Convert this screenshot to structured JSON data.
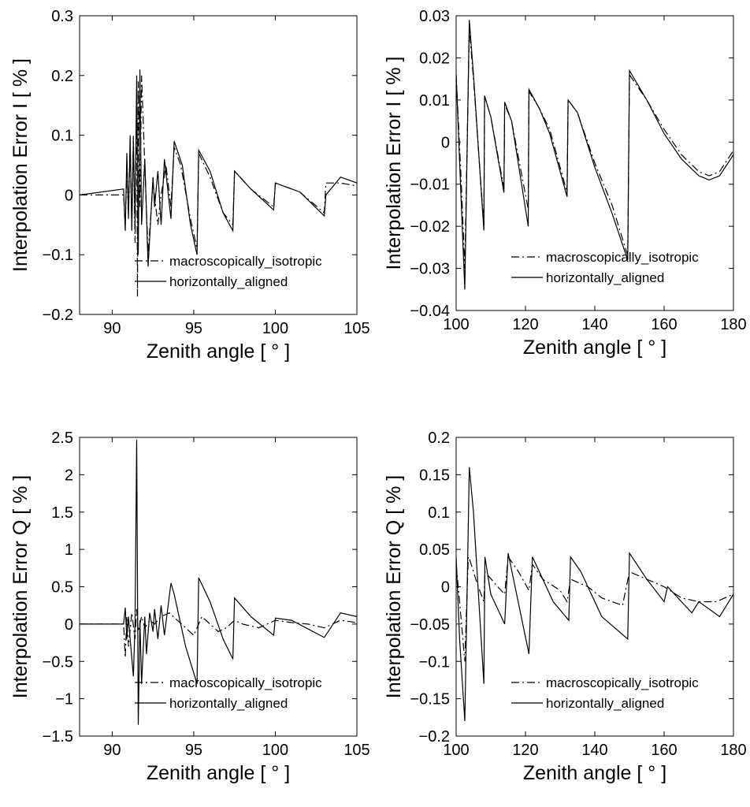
{
  "colors": {
    "line": "#000000",
    "background": "#ffffff"
  },
  "chart_data": [
    {
      "type": "line",
      "xlabel": "Zenith angle [ ° ]",
      "ylabel": "Interpolation Error I [ % ]",
      "xlim": [
        88,
        105
      ],
      "ylim": [
        -0.2,
        0.3
      ],
      "xticks": [
        90,
        95,
        100,
        105
      ],
      "yticks": [
        -0.2,
        -0.1,
        0,
        0.1,
        0.2,
        0.3
      ],
      "yticklabels": [
        "−0.2",
        "−0.1",
        "0",
        "0.1",
        "0.2",
        "0.3"
      ],
      "legend": {
        "location": "bottom-right"
      },
      "series": [
        {
          "name": "macroscopically_isotropic",
          "style": "dashdot",
          "x": [
            88,
            90.7,
            90.8,
            90.9,
            91.0,
            91.1,
            91.2,
            91.3,
            91.4,
            91.5,
            91.55,
            91.6,
            91.7,
            91.8,
            92.0,
            92.2,
            92.5,
            92.8,
            93.0,
            93.3,
            93.6,
            93.8,
            94.2,
            94.8,
            95.2,
            95.3,
            96.0,
            96.8,
            97.4,
            97.5,
            98.5,
            99.9,
            100.0,
            101.5,
            103.0,
            103.1,
            104.0,
            105.0
          ],
          "y": [
            0,
            0,
            -0.05,
            0.04,
            -0.03,
            0.08,
            -0.05,
            0.1,
            -0.08,
            0.18,
            -0.17,
            0.19,
            -0.02,
            0.2,
            0.05,
            -0.1,
            0.02,
            -0.05,
            0.0,
            0.05,
            -0.02,
            0.08,
            0.05,
            -0.04,
            -0.09,
            0.07,
            0.03,
            -0.03,
            -0.05,
            0.04,
            0.01,
            -0.02,
            0.02,
            0.005,
            -0.03,
            0.02,
            0.02,
            0.015
          ]
        },
        {
          "name": "horizontally_aligned",
          "style": "solid",
          "x": [
            88,
            90.7,
            90.8,
            90.9,
            91.0,
            91.1,
            91.2,
            91.3,
            91.4,
            91.5,
            91.6,
            91.7,
            91.8,
            92.0,
            92.2,
            92.5,
            92.6,
            92.8,
            93.0,
            93.2,
            93.6,
            93.8,
            94.3,
            94.8,
            95.2,
            95.3,
            96.0,
            96.8,
            97.4,
            97.5,
            98.5,
            99.9,
            100.0,
            101.5,
            103.0,
            103.1,
            104.0,
            105.0
          ],
          "y": [
            0,
            0.01,
            -0.06,
            0.07,
            -0.04,
            0.1,
            -0.06,
            0.09,
            -0.05,
            0.2,
            -0.1,
            0.21,
            -0.05,
            0.06,
            -0.12,
            0.03,
            -0.02,
            0.04,
            -0.05,
            0.06,
            -0.04,
            0.09,
            0.05,
            -0.05,
            -0.1,
            0.075,
            0.04,
            -0.03,
            -0.06,
            0.04,
            0.01,
            -0.025,
            0.02,
            0.005,
            -0.035,
            0.0,
            0.03,
            0.02
          ]
        }
      ]
    },
    {
      "type": "line",
      "xlabel": "Zenith angle [ ° ]",
      "ylabel": "Interpolation Error I [ % ]",
      "xlim": [
        100,
        180
      ],
      "ylim": [
        -0.04,
        0.03
      ],
      "xticks": [
        100,
        120,
        140,
        160,
        180
      ],
      "yticks": [
        -0.04,
        -0.03,
        -0.02,
        -0.01,
        0,
        0.01,
        0.02,
        0.03
      ],
      "yticklabels": [
        "−0.04",
        "−0.03",
        "−0.02",
        "−0.01",
        "0",
        "0.01",
        "0.02",
        "0.03"
      ],
      "legend": {
        "location": "bottom-right"
      },
      "series": [
        {
          "name": "macroscopically_isotropic",
          "style": "dashdot",
          "x": [
            100,
            101.5,
            102.5,
            103.8,
            105,
            108,
            108.2,
            110,
            113.8,
            114,
            116,
            120.8,
            121,
            124,
            127,
            132,
            132.3,
            135,
            140,
            145,
            149.5,
            150,
            155,
            160,
            165,
            170,
            173,
            176,
            180
          ],
          "y": [
            0.016,
            -0.01,
            -0.03,
            0.027,
            0.015,
            -0.02,
            0.011,
            0.006,
            -0.011,
            0.009,
            0.005,
            -0.016,
            0.012,
            0.008,
            0.003,
            -0.012,
            0.01,
            0.007,
            -0.005,
            -0.015,
            -0.027,
            0.016,
            0.01,
            0.003,
            -0.003,
            -0.007,
            -0.008,
            -0.007,
            -0.002
          ]
        },
        {
          "name": "horizontally_aligned",
          "style": "solid",
          "x": [
            100,
            101.5,
            102.5,
            103.8,
            105,
            108,
            108.2,
            110,
            113.8,
            114,
            116,
            120.8,
            121,
            124,
            127,
            132,
            132.3,
            135,
            140,
            145,
            149.5,
            150,
            155,
            160,
            165,
            170,
            173,
            176,
            180
          ],
          "y": [
            0.016,
            -0.015,
            -0.035,
            0.029,
            0.016,
            -0.021,
            0.011,
            0.006,
            -0.012,
            0.0095,
            0.005,
            -0.02,
            0.0125,
            0.008,
            0.002,
            -0.013,
            0.01,
            0.007,
            -0.006,
            -0.017,
            -0.028,
            0.017,
            0.01,
            0.002,
            -0.004,
            -0.008,
            -0.009,
            -0.008,
            -0.003
          ]
        }
      ]
    },
    {
      "type": "line",
      "xlabel": "Zenith angle [ ° ]",
      "ylabel": "Interpolation Error  Q [ % ]",
      "xlim": [
        88,
        105
      ],
      "ylim": [
        -1.5,
        2.5
      ],
      "xticks": [
        90,
        95,
        100,
        105
      ],
      "yticks": [
        -1.5,
        -1,
        -0.5,
        0,
        0.5,
        1,
        1.5,
        2,
        2.5
      ],
      "yticklabels": [
        "−1.5",
        "−1",
        "−0.5",
        "0",
        "0.5",
        "1",
        "1.5",
        "2",
        "2.5"
      ],
      "legend": {
        "location": "bottom-right"
      },
      "series": [
        {
          "name": "macroscopically_isotropic",
          "style": "dashdot",
          "x": [
            88,
            90.7,
            90.8,
            90.9,
            91.0,
            91.2,
            91.4,
            91.5,
            91.6,
            91.8,
            92.0,
            92.3,
            92.6,
            93.0,
            93.5,
            94.0,
            94.5,
            95.0,
            95.5,
            96.0,
            96.5,
            97.0,
            97.5,
            98.0,
            99.0,
            100.0,
            101.0,
            102.0,
            103.0,
            104.0,
            105.0
          ],
          "y": [
            0,
            0,
            -0.45,
            0.1,
            -0.3,
            0.15,
            -0.2,
            0.2,
            -0.1,
            0.1,
            -0.05,
            0.05,
            0.0,
            0.1,
            0.15,
            0.05,
            -0.05,
            -0.15,
            0.1,
            0.0,
            -0.1,
            -0.05,
            0.05,
            0.0,
            -0.05,
            0.05,
            0.02,
            0.0,
            -0.05,
            0.05,
            0.02
          ]
        },
        {
          "name": "horizontally_aligned",
          "style": "solid",
          "x": [
            88,
            90.7,
            90.8,
            90.9,
            91.0,
            91.1,
            91.3,
            91.4,
            91.5,
            91.6,
            91.7,
            91.8,
            92.0,
            92.1,
            92.3,
            92.5,
            92.6,
            92.8,
            93.0,
            93.2,
            93.6,
            93.8,
            94.5,
            95.2,
            95.3,
            96.0,
            96.8,
            97.4,
            97.5,
            98.5,
            99.9,
            100.0,
            101.0,
            103.0,
            104.0,
            105.0
          ],
          "y": [
            0,
            0.0,
            0.22,
            -0.2,
            0.1,
            -0.2,
            -0.7,
            0.0,
            2.47,
            -1.35,
            0.05,
            -0.8,
            0.1,
            -0.4,
            0.15,
            -0.1,
            0.2,
            -0.2,
            0.25,
            -0.15,
            0.55,
            0.4,
            -0.3,
            -0.8,
            0.62,
            0.3,
            -0.2,
            -0.47,
            0.35,
            0.1,
            -0.15,
            0.08,
            0.05,
            -0.18,
            0.15,
            0.1
          ]
        }
      ]
    },
    {
      "type": "line",
      "xlabel": "Zenith angle [ ° ]",
      "ylabel": "Interpolation Error Q [ % ]",
      "xlim": [
        100,
        180
      ],
      "ylim": [
        -0.2,
        0.2
      ],
      "xticks": [
        100,
        120,
        140,
        160,
        180
      ],
      "yticks": [
        -0.2,
        -0.15,
        -0.1,
        -0.05,
        0,
        0.05,
        0.1,
        0.15,
        0.2
      ],
      "yticklabels": [
        "−0.2",
        "−0.15",
        "−0.1",
        "−0.05",
        "0",
        "0.05",
        "0.1",
        "0.15",
        "0.2"
      ],
      "legend": {
        "location": "bottom-right"
      },
      "series": [
        {
          "name": "macroscopically_isotropic",
          "style": "dashdot",
          "x": [
            100,
            101,
            102.5,
            103.5,
            104,
            106,
            108,
            108.3,
            112,
            114,
            115,
            118,
            121,
            122,
            125,
            130,
            132,
            133,
            138,
            142,
            148,
            150,
            155,
            160,
            165,
            170,
            175,
            180
          ],
          "y": [
            0.03,
            -0.02,
            -0.1,
            0.04,
            0.035,
            0.005,
            -0.02,
            0.02,
            0.0,
            -0.01,
            0.04,
            0.02,
            -0.005,
            0.03,
            0.01,
            -0.005,
            -0.02,
            0.01,
            0.0,
            -0.015,
            -0.025,
            0.02,
            0.01,
            0.0,
            -0.015,
            -0.02,
            -0.02,
            -0.01
          ]
        },
        {
          "name": "horizontally_aligned",
          "style": "solid",
          "x": [
            100,
            101,
            102.5,
            103.8,
            105,
            108,
            108.3,
            110,
            114,
            115,
            117,
            121,
            122,
            124,
            128,
            132.5,
            133,
            136,
            142,
            149.5,
            150,
            155,
            160,
            161,
            165,
            168,
            170,
            173,
            176,
            180
          ],
          "y": [
            0.04,
            -0.07,
            -0.18,
            0.16,
            0.1,
            -0.13,
            0.04,
            -0.01,
            -0.05,
            0.045,
            0.0,
            -0.09,
            0.04,
            0.02,
            -0.02,
            -0.045,
            0.04,
            0.02,
            -0.04,
            -0.07,
            0.045,
            0.01,
            -0.02,
            0.0,
            -0.02,
            -0.035,
            -0.02,
            -0.03,
            -0.04,
            -0.01
          ]
        }
      ]
    }
  ]
}
